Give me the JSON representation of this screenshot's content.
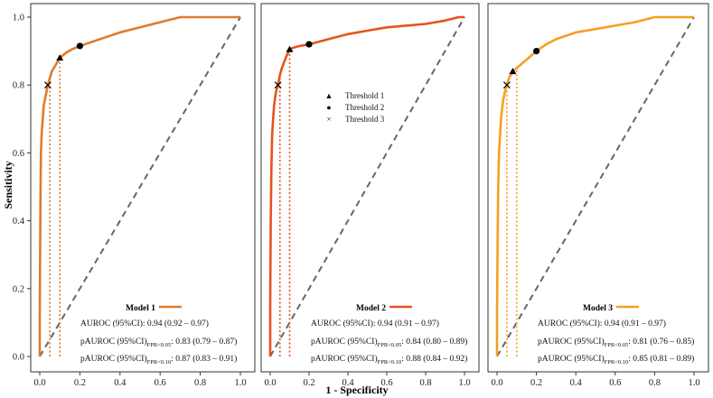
{
  "chart_data": {
    "type": "line",
    "xlabel": "1 - Specificity",
    "ylabel": "Sensitivity",
    "xlim": [
      0,
      1
    ],
    "ylim": [
      0,
      1
    ],
    "xticks": [
      "0.0",
      "0.2",
      "0.4",
      "0.6",
      "0.8",
      "1.0"
    ],
    "yticks": [
      "0.0",
      "0.2",
      "0.4",
      "0.6",
      "0.8",
      "1.0"
    ],
    "threshold_legend": [
      {
        "marker": "▲",
        "label": "Threshold 1"
      },
      {
        "marker": "●",
        "label": "Threshold 2"
      },
      {
        "marker": "×",
        "label": "Threshold 3"
      }
    ],
    "panels": [
      {
        "name": "Model 1",
        "color": "#e07a2c",
        "auroc": "AUROC (95%CI): 0.94 (0.92 – 0.97)",
        "pauroc_prefix": "pAUROC (95%CI)",
        "pauroc_05_sub": "FPR<0.05",
        "pauroc_05_val": ": 0.83 (0.79 – 0.87)",
        "pauroc_10_sub": "FPR<0.10",
        "pauroc_10_val": ": 0.87 (0.83 – 0.91)",
        "thresholds": {
          "t1": [
            0.1,
            0.88
          ],
          "t2": [
            0.2,
            0.915
          ],
          "t3": [
            0.04,
            0.8
          ]
        },
        "fpr_cutoffs": [
          0.05,
          0.1
        ],
        "roc": [
          [
            0,
            0
          ],
          [
            0,
            0.12
          ],
          [
            0.002,
            0.3
          ],
          [
            0.004,
            0.5
          ],
          [
            0.006,
            0.6
          ],
          [
            0.01,
            0.66
          ],
          [
            0.015,
            0.7
          ],
          [
            0.02,
            0.74
          ],
          [
            0.03,
            0.77
          ],
          [
            0.04,
            0.8
          ],
          [
            0.05,
            0.82
          ],
          [
            0.06,
            0.84
          ],
          [
            0.08,
            0.86
          ],
          [
            0.1,
            0.88
          ],
          [
            0.13,
            0.895
          ],
          [
            0.16,
            0.905
          ],
          [
            0.2,
            0.915
          ],
          [
            0.25,
            0.925
          ],
          [
            0.3,
            0.935
          ],
          [
            0.35,
            0.945
          ],
          [
            0.4,
            0.955
          ],
          [
            0.5,
            0.97
          ],
          [
            0.6,
            0.985
          ],
          [
            0.7,
            1.0
          ],
          [
            0.8,
            1.0
          ],
          [
            0.9,
            1.0
          ],
          [
            1.0,
            1.0
          ]
        ]
      },
      {
        "name": "Model 2",
        "color": "#e8521c",
        "auroc": "AUROC (95%CI): 0.94 (0.91 – 0.97)",
        "pauroc_prefix": "pAUROC (95%CI)",
        "pauroc_05_sub": "FPR<0.05",
        "pauroc_05_val": ": 0.84 (0.80 – 0.89)",
        "pauroc_10_sub": "FPR<0.10",
        "pauroc_10_val": ": 0.88 (0.84 – 0.92)",
        "thresholds": {
          "t1": [
            0.1,
            0.905
          ],
          "t2": [
            0.2,
            0.92
          ],
          "t3": [
            0.04,
            0.8
          ]
        },
        "fpr_cutoffs": [
          0.05,
          0.1
        ],
        "roc": [
          [
            0,
            0
          ],
          [
            0,
            0.15
          ],
          [
            0.003,
            0.4
          ],
          [
            0.006,
            0.55
          ],
          [
            0.01,
            0.65
          ],
          [
            0.015,
            0.7
          ],
          [
            0.02,
            0.74
          ],
          [
            0.03,
            0.78
          ],
          [
            0.04,
            0.8
          ],
          [
            0.05,
            0.83
          ],
          [
            0.06,
            0.85
          ],
          [
            0.08,
            0.88
          ],
          [
            0.1,
            0.905
          ],
          [
            0.12,
            0.91
          ],
          [
            0.15,
            0.915
          ],
          [
            0.2,
            0.92
          ],
          [
            0.3,
            0.935
          ],
          [
            0.4,
            0.95
          ],
          [
            0.5,
            0.96
          ],
          [
            0.6,
            0.97
          ],
          [
            0.7,
            0.975
          ],
          [
            0.8,
            0.98
          ],
          [
            0.9,
            0.99
          ],
          [
            0.97,
            1.0
          ],
          [
            1.0,
            1.0
          ]
        ]
      },
      {
        "name": "Model 3",
        "color": "#f5a01f",
        "auroc": "AUROC (95%CI): 0.94 (0.91 – 0.97)",
        "pauroc_prefix": "pAUROC (95%CI)",
        "pauroc_05_sub": "FPR<0.05",
        "pauroc_05_val": ": 0.81 (0.76 – 0.85)",
        "pauroc_10_sub": "FPR<0.10",
        "pauroc_10_val": ": 0.85 (0.81 – 0.89)",
        "thresholds": {
          "t1": [
            0.08,
            0.84
          ],
          "t2": [
            0.2,
            0.9
          ],
          "t3": [
            0.05,
            0.8
          ]
        },
        "fpr_cutoffs": [
          0.05,
          0.1
        ],
        "roc": [
          [
            0,
            0
          ],
          [
            0,
            0.12
          ],
          [
            0.003,
            0.35
          ],
          [
            0.006,
            0.5
          ],
          [
            0.01,
            0.6
          ],
          [
            0.015,
            0.65
          ],
          [
            0.02,
            0.7
          ],
          [
            0.03,
            0.75
          ],
          [
            0.04,
            0.78
          ],
          [
            0.05,
            0.8
          ],
          [
            0.06,
            0.82
          ],
          [
            0.08,
            0.84
          ],
          [
            0.1,
            0.85
          ],
          [
            0.13,
            0.865
          ],
          [
            0.16,
            0.88
          ],
          [
            0.2,
            0.9
          ],
          [
            0.25,
            0.92
          ],
          [
            0.3,
            0.935
          ],
          [
            0.4,
            0.955
          ],
          [
            0.5,
            0.965
          ],
          [
            0.6,
            0.975
          ],
          [
            0.7,
            0.985
          ],
          [
            0.8,
            1.0
          ],
          [
            0.9,
            1.0
          ],
          [
            1.0,
            1.0
          ]
        ]
      }
    ]
  }
}
